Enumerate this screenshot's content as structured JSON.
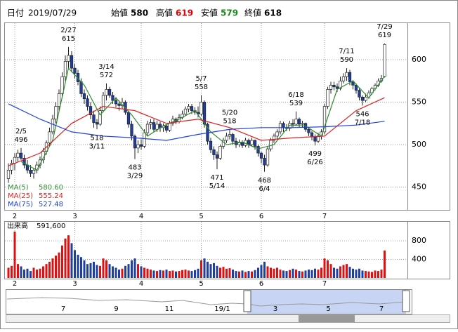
{
  "header": {
    "date_label": "日付",
    "date": "2019/07/29",
    "fields": [
      {
        "label": "始値",
        "value": 580
      },
      {
        "label": "高値",
        "value": 619
      },
      {
        "label": "安値",
        "value": 579
      },
      {
        "label": "終値",
        "value": 618
      }
    ]
  },
  "chart_data": {
    "type": "candlestick",
    "categories": [
      null,
      null,
      "2",
      null,
      null,
      null,
      null,
      null,
      null,
      null,
      null,
      null,
      null,
      null,
      null,
      null,
      null,
      null,
      null,
      null,
      null,
      "3",
      null,
      null,
      null,
      null,
      null,
      null,
      null,
      null,
      null,
      null,
      null,
      null,
      null,
      null,
      null,
      null,
      null,
      null,
      null,
      null,
      "4",
      null,
      null,
      null,
      null,
      null,
      null,
      null,
      null,
      null,
      null,
      null,
      null,
      null,
      null,
      null,
      null,
      null,
      null,
      "5",
      null,
      null,
      null,
      null,
      null,
      null,
      null,
      null,
      null,
      null,
      null,
      null,
      null,
      null,
      null,
      null,
      null,
      null,
      "6",
      null,
      null,
      null,
      null,
      null,
      null,
      null,
      null,
      null,
      null,
      null,
      null,
      null,
      null,
      null,
      null,
      null,
      null,
      null,
      "7",
      null,
      null,
      null,
      null,
      null,
      null,
      null,
      null,
      null,
      null,
      null,
      null,
      null,
      null,
      null,
      null,
      null,
      null,
      null
    ],
    "ohlc": [
      [
        460,
        478,
        455,
        470
      ],
      [
        470,
        482,
        465,
        478
      ],
      [
        478,
        490,
        470,
        485
      ],
      [
        485,
        494,
        480,
        490
      ],
      [
        490,
        496,
        482,
        484
      ],
      [
        484,
        488,
        472,
        476
      ],
      [
        476,
        482,
        466,
        470
      ],
      [
        470,
        476,
        462,
        466
      ],
      [
        466,
        472,
        460,
        470
      ],
      [
        470,
        480,
        466,
        476
      ],
      [
        476,
        486,
        472,
        482
      ],
      [
        482,
        496,
        478,
        492
      ],
      [
        492,
        505,
        488,
        502
      ],
      [
        502,
        520,
        498,
        515
      ],
      [
        515,
        535,
        512,
        530
      ],
      [
        530,
        550,
        525,
        545
      ],
      [
        545,
        565,
        540,
        560
      ],
      [
        560,
        585,
        555,
        580
      ],
      [
        580,
        605,
        575,
        598
      ],
      [
        598,
        615,
        590,
        605
      ],
      [
        605,
        610,
        585,
        590
      ],
      [
        590,
        595,
        578,
        584
      ],
      [
        584,
        588,
        570,
        574
      ],
      [
        574,
        578,
        556,
        560
      ],
      [
        560,
        565,
        548,
        554
      ],
      [
        554,
        558,
        540,
        545
      ],
      [
        545,
        550,
        530,
        535
      ],
      [
        535,
        540,
        520,
        526
      ],
      [
        526,
        530,
        518,
        524
      ],
      [
        524,
        545,
        522,
        540
      ],
      [
        540,
        562,
        538,
        558
      ],
      [
        558,
        572,
        552,
        565
      ],
      [
        565,
        568,
        555,
        558
      ],
      [
        558,
        562,
        548,
        552
      ],
      [
        552,
        556,
        544,
        548
      ],
      [
        548,
        552,
        540,
        546
      ],
      [
        546,
        555,
        542,
        550
      ],
      [
        550,
        552,
        535,
        538
      ],
      [
        538,
        540,
        520,
        524
      ],
      [
        524,
        528,
        505,
        510
      ],
      [
        510,
        512,
        483,
        496
      ],
      [
        496,
        505,
        490,
        500
      ],
      [
        500,
        506,
        494,
        498
      ],
      [
        498,
        518,
        496,
        514
      ],
      [
        514,
        528,
        510,
        524
      ],
      [
        524,
        530,
        518,
        526
      ],
      [
        526,
        530,
        515,
        518
      ],
      [
        518,
        528,
        515,
        524
      ],
      [
        524,
        527,
        515,
        520
      ],
      [
        520,
        525,
        515,
        522
      ],
      [
        522,
        524,
        514,
        517
      ],
      [
        517,
        528,
        515,
        525
      ],
      [
        525,
        534,
        522,
        530
      ],
      [
        530,
        532,
        524,
        527
      ],
      [
        527,
        536,
        525,
        532
      ],
      [
        532,
        540,
        530,
        536
      ],
      [
        536,
        545,
        534,
        542
      ],
      [
        542,
        548,
        538,
        545
      ],
      [
        545,
        548,
        536,
        540
      ],
      [
        540,
        544,
        535,
        538
      ],
      [
        538,
        545,
        532,
        536
      ],
      [
        536,
        558,
        534,
        550
      ],
      [
        550,
        552,
        520,
        524
      ],
      [
        524,
        526,
        500,
        504
      ],
      [
        504,
        508,
        490,
        494
      ],
      [
        494,
        498,
        482,
        488
      ],
      [
        488,
        492,
        471,
        484
      ],
      [
        484,
        500,
        482,
        498
      ],
      [
        498,
        508,
        495,
        505
      ],
      [
        505,
        514,
        502,
        510
      ],
      [
        510,
        518,
        506,
        512
      ],
      [
        512,
        514,
        500,
        504
      ],
      [
        504,
        508,
        496,
        500
      ],
      [
        500,
        506,
        497,
        503
      ],
      [
        503,
        505,
        496,
        499
      ],
      [
        499,
        508,
        497,
        505
      ],
      [
        505,
        507,
        496,
        500
      ],
      [
        500,
        508,
        498,
        505
      ],
      [
        505,
        506,
        494,
        498
      ],
      [
        498,
        500,
        486,
        490
      ],
      [
        490,
        492,
        478,
        484
      ],
      [
        484,
        488,
        468,
        476
      ],
      [
        476,
        498,
        474,
        495
      ],
      [
        495,
        508,
        492,
        505
      ],
      [
        505,
        513,
        502,
        510
      ],
      [
        510,
        518,
        506,
        515
      ],
      [
        515,
        528,
        512,
        525
      ],
      [
        525,
        527,
        515,
        520
      ],
      [
        520,
        524,
        516,
        519
      ],
      [
        519,
        528,
        516,
        525
      ],
      [
        525,
        530,
        520,
        524
      ],
      [
        524,
        539,
        522,
        530
      ],
      [
        530,
        532,
        520,
        524
      ],
      [
        524,
        528,
        520,
        525
      ],
      [
        525,
        526,
        515,
        518
      ],
      [
        518,
        520,
        510,
        514
      ],
      [
        514,
        516,
        505,
        509
      ],
      [
        509,
        512,
        499,
        504
      ],
      [
        504,
        514,
        502,
        510
      ],
      [
        510,
        518,
        506,
        515
      ],
      [
        515,
        548,
        512,
        545
      ],
      [
        545,
        568,
        542,
        565
      ],
      [
        565,
        574,
        560,
        570
      ],
      [
        570,
        574,
        564,
        568
      ],
      [
        568,
        572,
        562,
        566
      ],
      [
        566,
        580,
        564,
        575
      ],
      [
        575,
        584,
        572,
        580
      ],
      [
        580,
        590,
        575,
        585
      ],
      [
        585,
        588,
        570,
        574
      ],
      [
        574,
        576,
        565,
        570
      ],
      [
        570,
        572,
        560,
        564
      ],
      [
        564,
        566,
        552,
        556
      ],
      [
        556,
        558,
        546,
        552
      ],
      [
        552,
        560,
        550,
        556
      ],
      [
        556,
        564,
        554,
        561
      ],
      [
        561,
        568,
        559,
        566
      ],
      [
        566,
        572,
        564,
        570
      ],
      [
        570,
        578,
        568,
        575
      ],
      [
        575,
        582,
        573,
        578
      ],
      [
        580,
        619,
        579,
        618
      ]
    ],
    "ylim": [
      424,
      643
    ],
    "yticks": [
      450,
      500,
      550,
      600
    ],
    "grid": true,
    "up_color": "#ffffff",
    "down_color": "#1f3f9f",
    "series": [
      {
        "name": "MA(5)",
        "color": "#2e8b2e",
        "legend_value": "580.60",
        "x": [
          4,
          9,
          14,
          19,
          24,
          29,
          34,
          39,
          44,
          49,
          54,
          59,
          64,
          69,
          74,
          79,
          84,
          89,
          94,
          99,
          104,
          109,
          114,
          119
        ],
        "values": [
          480,
          470,
          505,
          590,
          570,
          535,
          555,
          535,
          510,
          522,
          530,
          540,
          515,
          500,
          503,
          495,
          500,
          523,
          522,
          510,
          565,
          575,
          555,
          580.6
        ]
      },
      {
        "name": "MA(25)",
        "color": "#e02020",
        "legend_value": "555.24",
        "x": [
          0,
          10,
          20,
          30,
          40,
          50,
          60,
          70,
          80,
          90,
          100,
          110,
          119
        ],
        "values": [
          475,
          490,
          525,
          545,
          540,
          525,
          530,
          520,
          505,
          508,
          510,
          540,
          555.24
        ]
      },
      {
        "name": "MA(75)",
        "color": "#2040e0",
        "legend_value": "527.48",
        "x": [
          0,
          10,
          20,
          30,
          40,
          50,
          60,
          70,
          80,
          90,
          100,
          110,
          119
        ],
        "values": [
          548,
          530,
          515,
          510,
          508,
          505,
          512,
          518,
          520,
          520,
          521,
          523,
          527.48
        ]
      }
    ],
    "annotations": [
      {
        "date": "2/5",
        "value": 496,
        "x": 4,
        "side": "above"
      },
      {
        "date": "2/27",
        "value": 615,
        "x": 19,
        "side": "above"
      },
      {
        "date": "3/14",
        "value": 572,
        "x": 31,
        "side": "above"
      },
      {
        "date": "3/11",
        "value": 518,
        "x": 28,
        "side": "below"
      },
      {
        "date": "3/29",
        "value": 483,
        "x": 40,
        "side": "below"
      },
      {
        "date": "5/7",
        "value": 558,
        "x": 61,
        "side": "above"
      },
      {
        "date": "5/14",
        "value": 471,
        "x": 66,
        "side": "below"
      },
      {
        "date": "5/20",
        "value": 518,
        "x": 70,
        "side": "above"
      },
      {
        "date": "6/4",
        "value": 468,
        "x": 81,
        "side": "below"
      },
      {
        "date": "6/18",
        "value": 539,
        "x": 91,
        "side": "above"
      },
      {
        "date": "6/26",
        "value": 499,
        "x": 97,
        "side": "below"
      },
      {
        "date": "7/11",
        "value": 590,
        "x": 107,
        "side": "above"
      },
      {
        "date": "7/18",
        "value": 546,
        "x": 112,
        "side": "below"
      },
      {
        "date": "7/29",
        "value": 619,
        "x": 119,
        "side": "above"
      }
    ],
    "volume": {
      "label": "出来高",
      "last": "591,600",
      "ylim": [
        0,
        1180
      ],
      "yticks": [
        400,
        800
      ],
      "up_color": "#e01010",
      "down_color": "#1f3f9f",
      "values": [
        220,
        260,
        1000,
        300,
        250,
        180,
        200,
        150,
        220,
        180,
        200,
        250,
        300,
        350,
        420,
        480,
        550,
        700,
        850,
        920,
        750,
        600,
        500,
        450,
        380,
        300,
        320,
        350,
        280,
        260,
        420,
        380,
        300,
        250,
        220,
        180,
        200,
        260,
        300,
        380,
        420,
        300,
        250,
        220,
        200,
        180,
        160,
        150,
        170,
        160,
        180,
        150,
        160,
        140,
        150,
        170,
        180,
        160,
        150,
        170,
        200,
        380,
        420,
        350,
        300,
        320,
        260,
        220,
        240,
        200,
        210,
        180,
        150,
        140,
        160,
        130,
        150,
        140,
        170,
        220,
        280,
        350,
        250,
        220,
        200,
        220,
        180,
        160,
        150,
        170,
        200,
        180,
        150,
        140,
        160,
        180,
        170,
        200,
        180,
        220,
        420,
        380,
        300,
        220,
        200,
        250,
        280,
        300,
        240,
        200,
        180,
        200,
        160,
        150,
        140,
        130,
        160,
        150,
        180,
        591.6
      ]
    }
  },
  "navigator": {
    "labels": [
      "7",
      "9",
      "11",
      "19/1",
      "3",
      "5",
      "7"
    ]
  }
}
